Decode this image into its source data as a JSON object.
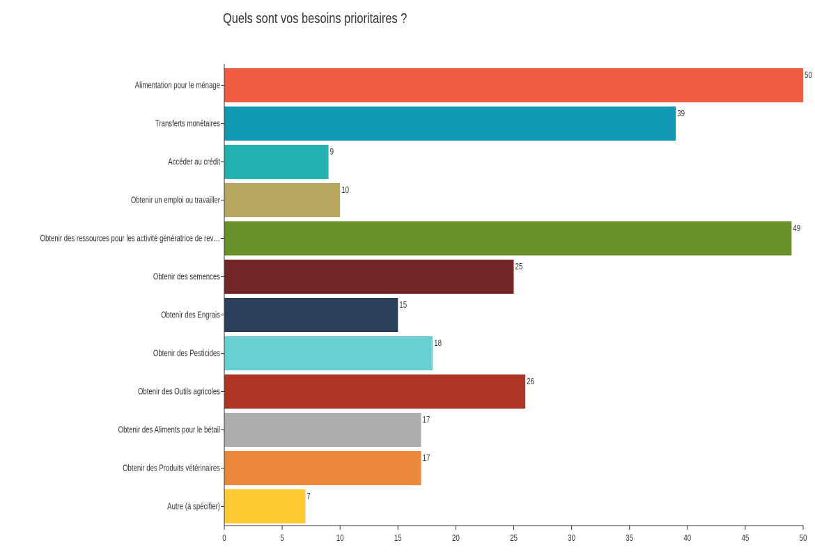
{
  "chart_data": {
    "type": "bar",
    "orientation": "horizontal",
    "title": "Quels sont vos besoins prioritaires ?",
    "xlabel": "",
    "ylabel": "",
    "categories": [
      "Alimentation pour le ménage",
      "Transferts monétaires",
      "Accéder au crédit",
      "Obtenir un emploi ou travailler",
      "Obtenir des ressources pour les activité génératrice de rev…",
      "Obtenir des semences",
      "Obtenir des Engrais",
      "Obtenir des Pesticides",
      "Obtenir des Outils agricoles",
      "Obtenir des Aliments pour le bétail",
      "Obtenir des Produits vétérinaires",
      "Autre (à spécifier)"
    ],
    "values": [
      50,
      39,
      9,
      10,
      49,
      25,
      15,
      18,
      26,
      17,
      17,
      7
    ],
    "colors": [
      "#f15c40",
      "#1098b2",
      "#22b2b2",
      "#b8a65e",
      "#6a902a",
      "#732526",
      "#2c3f5a",
      "#6acfd0",
      "#ae3426",
      "#adadad",
      "#ec883e",
      "#fdcb31"
    ],
    "xlim": [
      0,
      50
    ],
    "xticks": [
      0,
      5,
      10,
      15,
      20,
      25,
      30,
      35,
      40,
      45,
      50
    ],
    "grid": false,
    "legend": "none"
  }
}
